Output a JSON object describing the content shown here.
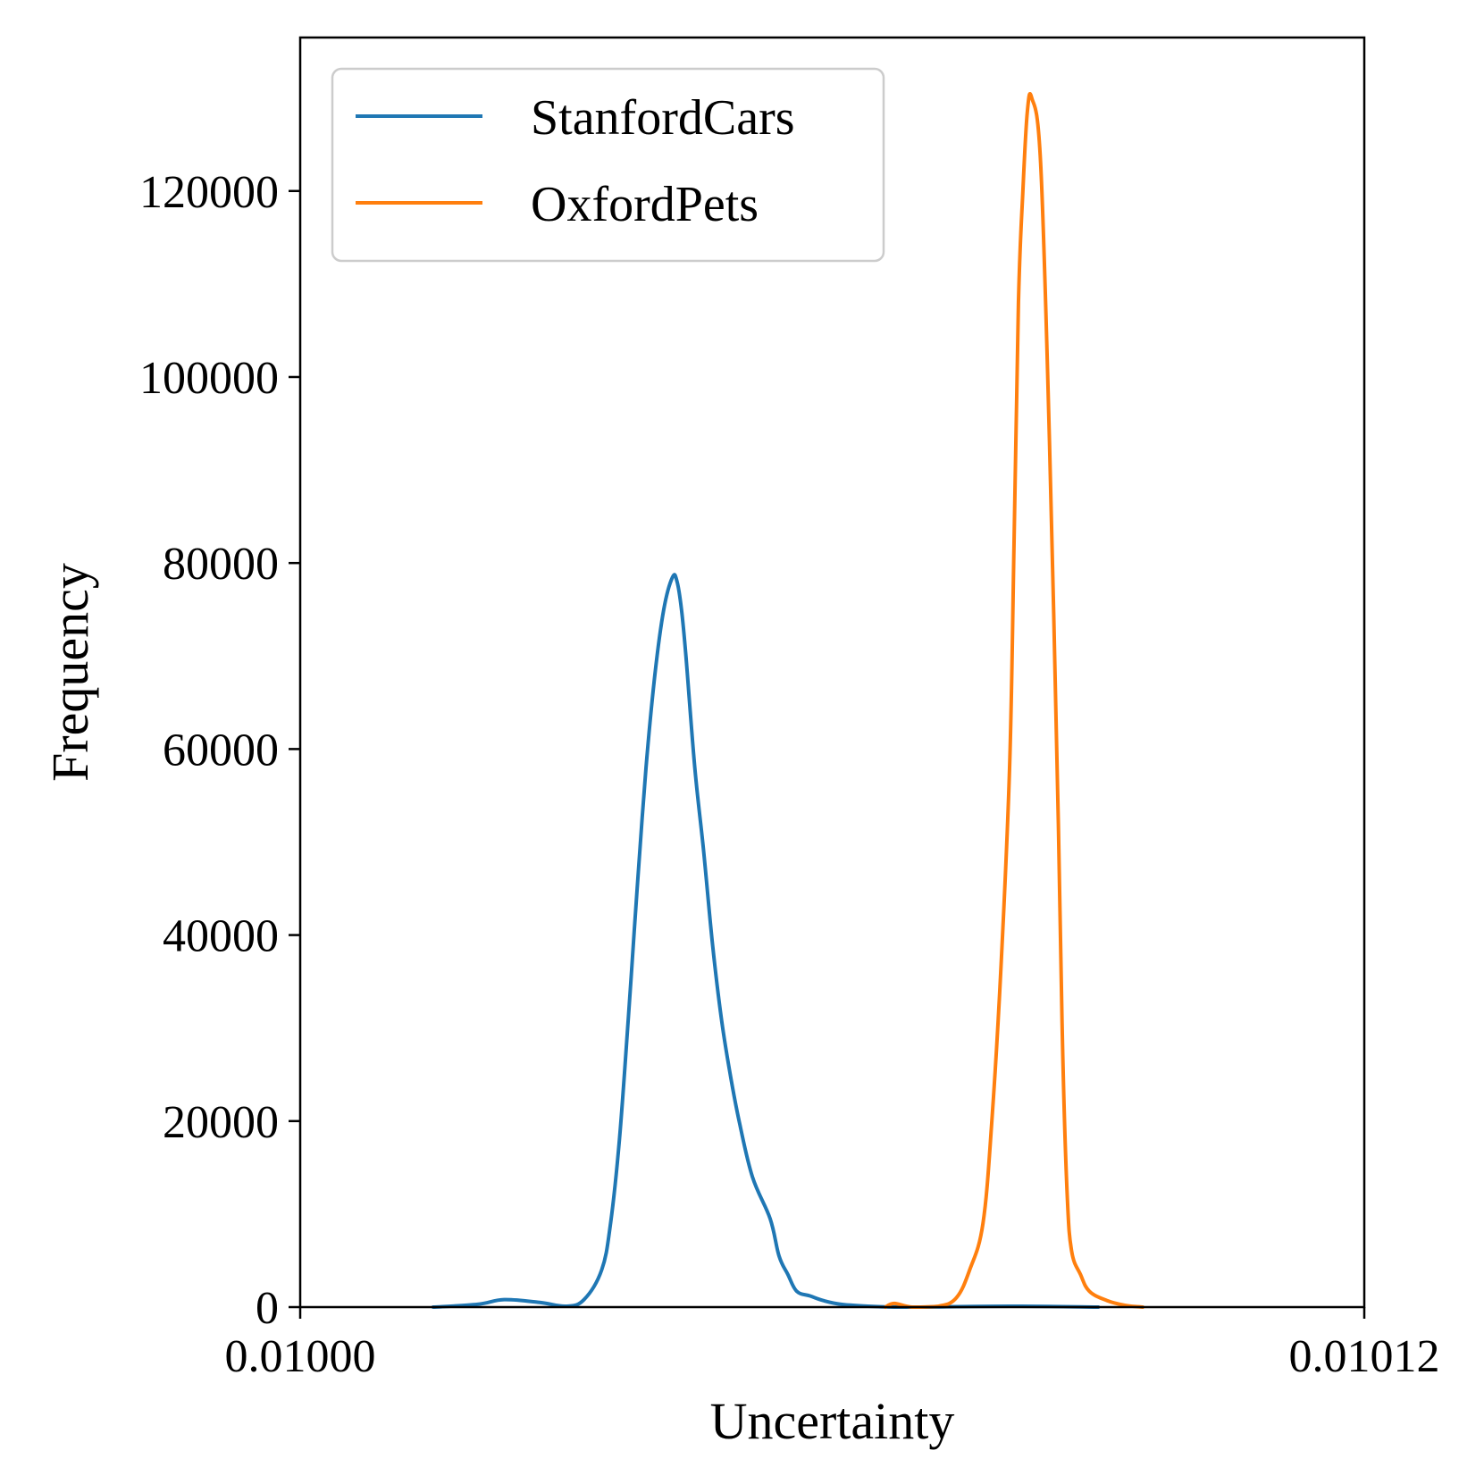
{
  "chart_data": {
    "type": "line",
    "title": "",
    "xlabel": "Uncertainty",
    "ylabel": "Frequency",
    "xlim": [
      0.01,
      0.01012
    ],
    "ylim": [
      0,
      136500
    ],
    "x_ticks": [
      {
        "value": 0.01,
        "label": "0.01000"
      },
      {
        "value": 0.01012,
        "label": "0.01012"
      }
    ],
    "y_ticks": [
      {
        "value": 0,
        "label": "0"
      },
      {
        "value": 20000,
        "label": "20000"
      },
      {
        "value": 40000,
        "label": "40000"
      },
      {
        "value": 60000,
        "label": "60000"
      },
      {
        "value": 80000,
        "label": "80000"
      },
      {
        "value": 100000,
        "label": "100000"
      },
      {
        "value": 120000,
        "label": "120000"
      }
    ],
    "legend_position": "top-left",
    "grid": false,
    "series": [
      {
        "name": "StanfordCars",
        "color": "#1f77b4",
        "x": [
          0.010015,
          0.01002,
          0.010023,
          0.010027,
          0.01003,
          0.010032,
          0.010034,
          0.010035,
          0.010036,
          0.010037,
          0.0100375,
          0.010038,
          0.010039,
          0.01004,
          0.010041,
          0.010042,
          0.0100425,
          0.010043,
          0.0100435,
          0.0100445,
          0.0100455,
          0.0100465,
          0.0100475,
          0.0100485,
          0.0100495,
          0.010051,
          0.010053,
          0.010054,
          0.010055,
          0.010056,
          0.0100575,
          0.010059,
          0.010061,
          0.010064,
          0.010067,
          0.01007,
          0.01008,
          0.01009
        ],
        "y": [
          0,
          300,
          800,
          500,
          100,
          800,
          4000,
          9000,
          18000,
          31000,
          38000,
          45000,
          58000,
          68000,
          75000,
          78500,
          78000,
          75000,
          70000,
          58000,
          49000,
          39000,
          31000,
          25000,
          20000,
          14000,
          9500,
          5500,
          3500,
          1700,
          1200,
          700,
          300,
          100,
          0,
          0,
          100,
          0
        ]
      },
      {
        "name": "OxfordPets",
        "color": "#ff7f0e",
        "x": [
          0.010066,
          0.010067,
          0.010069,
          0.010072,
          0.010074,
          0.0100755,
          0.010077,
          0.010078,
          0.010079,
          0.01008,
          0.0100805,
          0.010081,
          0.0100815,
          0.010082,
          0.0100825,
          0.0100835,
          0.0100845,
          0.0100855,
          0.010086,
          0.0100865,
          0.010087,
          0.010088,
          0.010089,
          0.010091,
          0.010093,
          0.010095
        ],
        "y": [
          0,
          400,
          0,
          100,
          1000,
          4000,
          9000,
          20000,
          36000,
          58000,
          82000,
          108000,
          120000,
          128500,
          130000,
          123000,
          93000,
          52000,
          27000,
          12000,
          6000,
          3500,
          1700,
          700,
          200,
          0
        ]
      }
    ]
  }
}
